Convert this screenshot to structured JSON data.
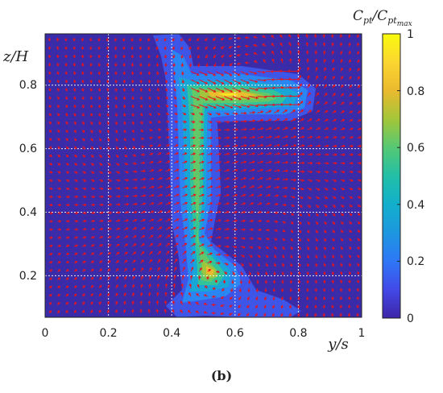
{
  "figure": {
    "panel_label": "(b)"
  },
  "chart_data": {
    "type": "heatmap",
    "title": "",
    "xlabel": "y/s",
    "ylabel": "z/H",
    "xlim": [
      0,
      1
    ],
    "ylim": [
      0.07,
      0.94
    ],
    "x_ticks": [
      0,
      0.2,
      0.4,
      0.6,
      0.8,
      1
    ],
    "x_tick_labels": [
      "0",
      "0.2",
      "0.4",
      "0.6",
      "0.8",
      "1"
    ],
    "y_ticks": [
      0.2,
      0.4,
      0.6,
      0.8
    ],
    "y_tick_labels": [
      "0.2",
      "0.4",
      "0.6",
      "0.8"
    ],
    "grid": true,
    "colorbar": {
      "label": "C_pt/C_pt_max",
      "label_main": "C",
      "label_sub1": "pt",
      "label_mid": "/C",
      "label_sub2": "pt",
      "label_sub3": "max",
      "range": [
        0,
        1
      ],
      "ticks": [
        0,
        0.2,
        0.4,
        0.6,
        0.8,
        1
      ],
      "tick_labels": [
        "0",
        "0.2",
        "0.4",
        "0.6",
        "0.8",
        "1"
      ],
      "colormap": "parula"
    },
    "contour_regions": [
      {
        "description": "vertical total-pressure column",
        "level": 0.5,
        "x_range": [
          0.43,
          0.55
        ],
        "y_range": [
          0.2,
          0.8
        ]
      },
      {
        "description": "upper lateral lobe",
        "level": 0.9,
        "center": [
          0.65,
          0.78
        ]
      },
      {
        "description": "lower blob",
        "level": 0.85,
        "center": [
          0.53,
          0.2
        ]
      }
    ],
    "vector_field": {
      "color": "#e8141b",
      "description": "in-plane velocity arrows on a regular grid"
    },
    "colors": {
      "background": "#3a2ca8",
      "arrow": "#e8141b"
    }
  }
}
